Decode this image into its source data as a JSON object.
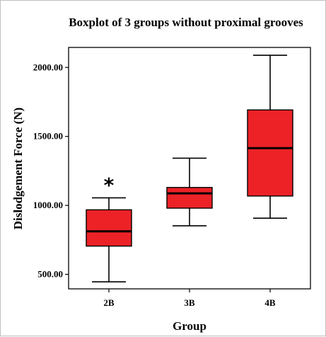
{
  "chart_data": {
    "type": "boxplot",
    "title": "Boxplot of 3 groups without proximal grooves",
    "xlabel": "Group",
    "ylabel": "Dislodgement Force (N)",
    "ylim": [
      395,
      2145
    ],
    "yticks": [
      500,
      1000,
      1500,
      2000
    ],
    "ytick_labels": [
      "500.00",
      "1000.00",
      "1500.00",
      "2000.00"
    ],
    "grid": false,
    "box_color": "#ec2227",
    "categories": [
      "2B",
      "3B",
      "4B"
    ],
    "boxes": [
      {
        "group": "2B",
        "min": 446,
        "q1": 705,
        "median": 812,
        "q3": 968,
        "max": 1055,
        "outliers": [
          1170
        ]
      },
      {
        "group": "3B",
        "min": 852,
        "q1": 980,
        "median": 1087,
        "q3": 1130,
        "max": 1342,
        "outliers": []
      },
      {
        "group": "4B",
        "min": 907,
        "q1": 1068,
        "median": 1415,
        "q3": 1692,
        "max": 2088,
        "outliers": []
      }
    ]
  }
}
